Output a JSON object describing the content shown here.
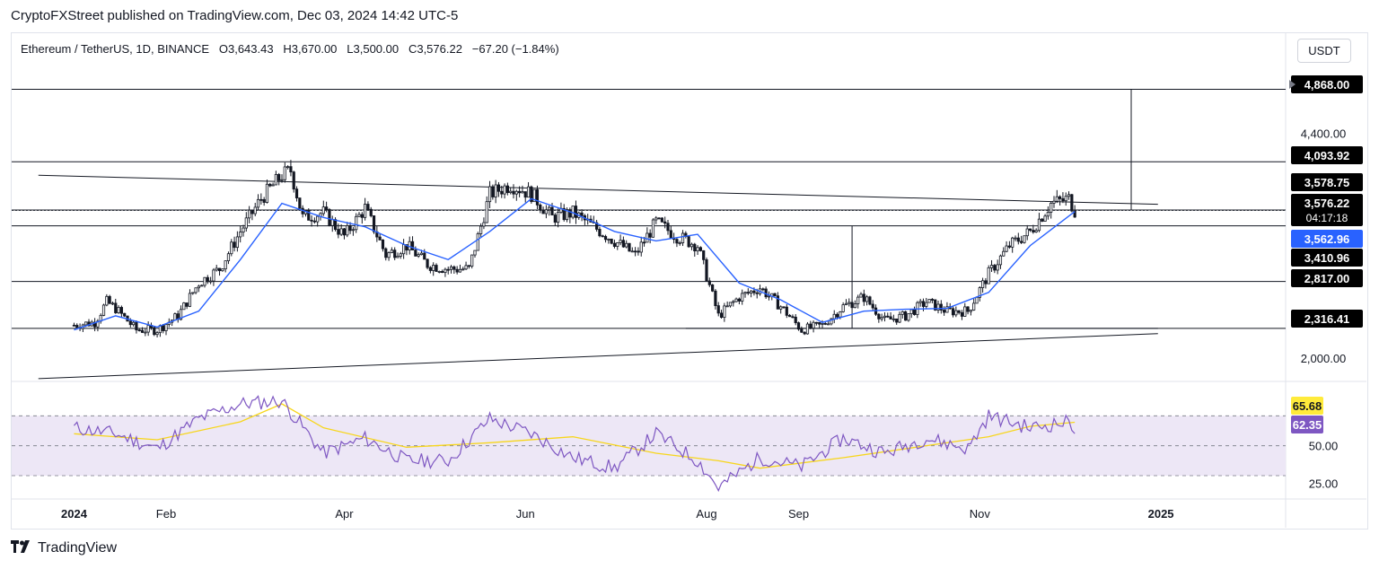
{
  "header": {
    "published_line": "CryptoFXStreet published on TradingView.com, Dec 03, 2024 14:42 UTC-5"
  },
  "legend": {
    "symbol": "Ethereum / TetherUS, 1D, BINANCE",
    "open": "O3,643.43",
    "high": "H3,670.00",
    "low": "L3,500.00",
    "close": "C3,576.22",
    "change": "−67.20 (−1.84%)"
  },
  "currency_button": "USDT",
  "colors": {
    "up": "#131722",
    "down": "#131722",
    "ema": "#2962ff",
    "rsi": "#7e57c2",
    "rsi_ma": "#f7d61b",
    "rsi_band": "#ede7f6",
    "label_blue": "#2962ff",
    "label_black": "#000000",
    "label_purple": "#7e57c2",
    "label_yellow": "#ffeb3b"
  },
  "footer": {
    "brand": "TradingView",
    "logo": "tradingview-logo-icon"
  },
  "chart_data": {
    "type": "candlestick",
    "symbol": "ETHUSDT",
    "timeframe": "1D",
    "x_tick_labels": [
      "2024",
      "Feb",
      "Apr",
      "Jun",
      "Aug",
      "Sep",
      "Nov",
      "2025"
    ],
    "x_tick_dates": [
      "2024-01-01",
      "2024-02-01",
      "2024-04-01",
      "2024-06-01",
      "2024-08-01",
      "2024-09-01",
      "2024-11-01",
      "2025-01-01"
    ],
    "price_axis_labels": [
      "4,400.00",
      "2,000.00"
    ],
    "price_axis_values": [
      4400,
      2000
    ],
    "price_ylim": [
      1750,
      5150
    ],
    "horizontal_levels": [
      4868.0,
      4093.92,
      3578.75,
      3410.96,
      2817.0,
      2316.41
    ],
    "price_labels": [
      {
        "text": "4,868.00",
        "value": 4868.0,
        "style": "black-arrow"
      },
      {
        "text": "4,093.92",
        "value": 4093.92,
        "style": "black"
      },
      {
        "text": "3,578.75",
        "value": 3578.75,
        "style": "black"
      },
      {
        "text": "3,576.22",
        "value": 3576.22,
        "style": "black-close",
        "sub": "04:17:18"
      },
      {
        "text": "3,562.96",
        "value": 3562.96,
        "style": "blue"
      },
      {
        "text": "3,410.96",
        "value": 3410.96,
        "style": "black"
      },
      {
        "text": "2,817.00",
        "value": 2817.0,
        "style": "black"
      },
      {
        "text": "2,316.41",
        "value": 2316.41,
        "style": "black"
      }
    ],
    "trendlines": [
      {
        "name": "upper-trendline",
        "from": [
          "2023-12-20",
          3950
        ],
        "to": [
          "2024-12-31",
          3640
        ]
      },
      {
        "name": "lower-trendline",
        "from": [
          "2023-12-20",
          1780
        ],
        "to": [
          "2024-12-31",
          2260
        ]
      }
    ],
    "series_close": [
      [
        "2024-01-01",
        2350
      ],
      [
        "2024-01-08",
        2380
      ],
      [
        "2024-01-12",
        2600
      ],
      [
        "2024-01-15",
        2530
      ],
      [
        "2024-01-22",
        2300
      ],
      [
        "2024-01-29",
        2300
      ],
      [
        "2024-02-05",
        2450
      ],
      [
        "2024-02-12",
        2800
      ],
      [
        "2024-02-19",
        2950
      ],
      [
        "2024-02-26",
        3350
      ],
      [
        "2024-03-04",
        3700
      ],
      [
        "2024-03-11",
        3950
      ],
      [
        "2024-03-14",
        4000
      ],
      [
        "2024-03-18",
        3500
      ],
      [
        "2024-03-25",
        3550
      ],
      [
        "2024-04-01",
        3300
      ],
      [
        "2024-04-08",
        3600
      ],
      [
        "2024-04-15",
        3100
      ],
      [
        "2024-04-22",
        3200
      ],
      [
        "2024-04-29",
        3000
      ],
      [
        "2024-05-06",
        2950
      ],
      [
        "2024-05-13",
        2950
      ],
      [
        "2024-05-20",
        3750
      ],
      [
        "2024-05-27",
        3850
      ],
      [
        "2024-06-03",
        3750
      ],
      [
        "2024-06-10",
        3500
      ],
      [
        "2024-06-17",
        3550
      ],
      [
        "2024-06-24",
        3400
      ],
      [
        "2024-07-01",
        3250
      ],
      [
        "2024-07-08",
        3100
      ],
      [
        "2024-07-15",
        3450
      ],
      [
        "2024-07-22",
        3300
      ],
      [
        "2024-07-29",
        3200
      ],
      [
        "2024-08-05",
        2450
      ],
      [
        "2024-08-12",
        2650
      ],
      [
        "2024-08-19",
        2750
      ],
      [
        "2024-08-26",
        2550
      ],
      [
        "2024-09-02",
        2300
      ],
      [
        "2024-09-09",
        2350
      ],
      [
        "2024-09-16",
        2550
      ],
      [
        "2024-09-23",
        2650
      ],
      [
        "2024-09-30",
        2400
      ],
      [
        "2024-10-07",
        2450
      ],
      [
        "2024-10-14",
        2600
      ],
      [
        "2024-10-21",
        2500
      ],
      [
        "2024-10-28",
        2500
      ],
      [
        "2024-11-04",
        2900
      ],
      [
        "2024-11-11",
        3200
      ],
      [
        "2024-11-18",
        3350
      ],
      [
        "2024-11-25",
        3650
      ],
      [
        "2024-12-01",
        3700
      ],
      [
        "2024-12-03",
        3576
      ]
    ],
    "ema": [
      [
        "2024-01-01",
        2300
      ],
      [
        "2024-01-15",
        2450
      ],
      [
        "2024-01-29",
        2330
      ],
      [
        "2024-02-12",
        2500
      ],
      [
        "2024-02-26",
        3050
      ],
      [
        "2024-03-11",
        3650
      ],
      [
        "2024-03-25",
        3500
      ],
      [
        "2024-04-08",
        3400
      ],
      [
        "2024-04-22",
        3200
      ],
      [
        "2024-05-06",
        3050
      ],
      [
        "2024-05-20",
        3350
      ],
      [
        "2024-06-03",
        3700
      ],
      [
        "2024-06-17",
        3550
      ],
      [
        "2024-07-01",
        3350
      ],
      [
        "2024-07-15",
        3250
      ],
      [
        "2024-07-29",
        3320
      ],
      [
        "2024-08-12",
        2800
      ],
      [
        "2024-08-26",
        2620
      ],
      [
        "2024-09-09",
        2380
      ],
      [
        "2024-09-23",
        2500
      ],
      [
        "2024-10-07",
        2520
      ],
      [
        "2024-10-21",
        2530
      ],
      [
        "2024-11-04",
        2700
      ],
      [
        "2024-11-18",
        3200
      ],
      [
        "2024-12-03",
        3563
      ]
    ],
    "rsi": {
      "axis_labels": [
        "50.00",
        "25.00"
      ],
      "axis_values": [
        50,
        25
      ],
      "bands": [
        30,
        50,
        70
      ],
      "ylim": [
        15,
        90
      ],
      "labels": [
        {
          "text": "65.68",
          "value": 65.68,
          "style": "yellow"
        },
        {
          "text": "62.35",
          "value": 62.35,
          "style": "purple"
        }
      ],
      "rsi_values": [
        [
          "2024-01-01",
          62
        ],
        [
          "2024-01-15",
          58
        ],
        [
          "2024-01-29",
          48
        ],
        [
          "2024-02-12",
          68
        ],
        [
          "2024-02-26",
          78
        ],
        [
          "2024-03-11",
          80
        ],
        [
          "2024-03-25",
          45
        ],
        [
          "2024-04-08",
          55
        ],
        [
          "2024-04-22",
          40
        ],
        [
          "2024-05-06",
          40
        ],
        [
          "2024-05-20",
          68
        ],
        [
          "2024-06-03",
          58
        ],
        [
          "2024-06-17",
          42
        ],
        [
          "2024-07-01",
          35
        ],
        [
          "2024-07-15",
          58
        ],
        [
          "2024-07-29",
          40
        ],
        [
          "2024-08-05",
          22
        ],
        [
          "2024-08-19",
          42
        ],
        [
          "2024-09-02",
          36
        ],
        [
          "2024-09-16",
          55
        ],
        [
          "2024-09-30",
          45
        ],
        [
          "2024-10-14",
          55
        ],
        [
          "2024-10-28",
          48
        ],
        [
          "2024-11-04",
          70
        ],
        [
          "2024-11-18",
          62
        ],
        [
          "2024-12-01",
          66
        ],
        [
          "2024-12-03",
          62
        ]
      ],
      "rsi_ma_values": [
        [
          "2024-01-01",
          58
        ],
        [
          "2024-01-29",
          54
        ],
        [
          "2024-02-26",
          66
        ],
        [
          "2024-03-11",
          78
        ],
        [
          "2024-03-25",
          62
        ],
        [
          "2024-04-22",
          49
        ],
        [
          "2024-05-20",
          52
        ],
        [
          "2024-06-17",
          56
        ],
        [
          "2024-07-15",
          45
        ],
        [
          "2024-08-05",
          40
        ],
        [
          "2024-08-19",
          35
        ],
        [
          "2024-09-16",
          42
        ],
        [
          "2024-10-14",
          50
        ],
        [
          "2024-11-04",
          56
        ],
        [
          "2024-11-18",
          63
        ],
        [
          "2024-12-03",
          65.68
        ]
      ]
    }
  }
}
